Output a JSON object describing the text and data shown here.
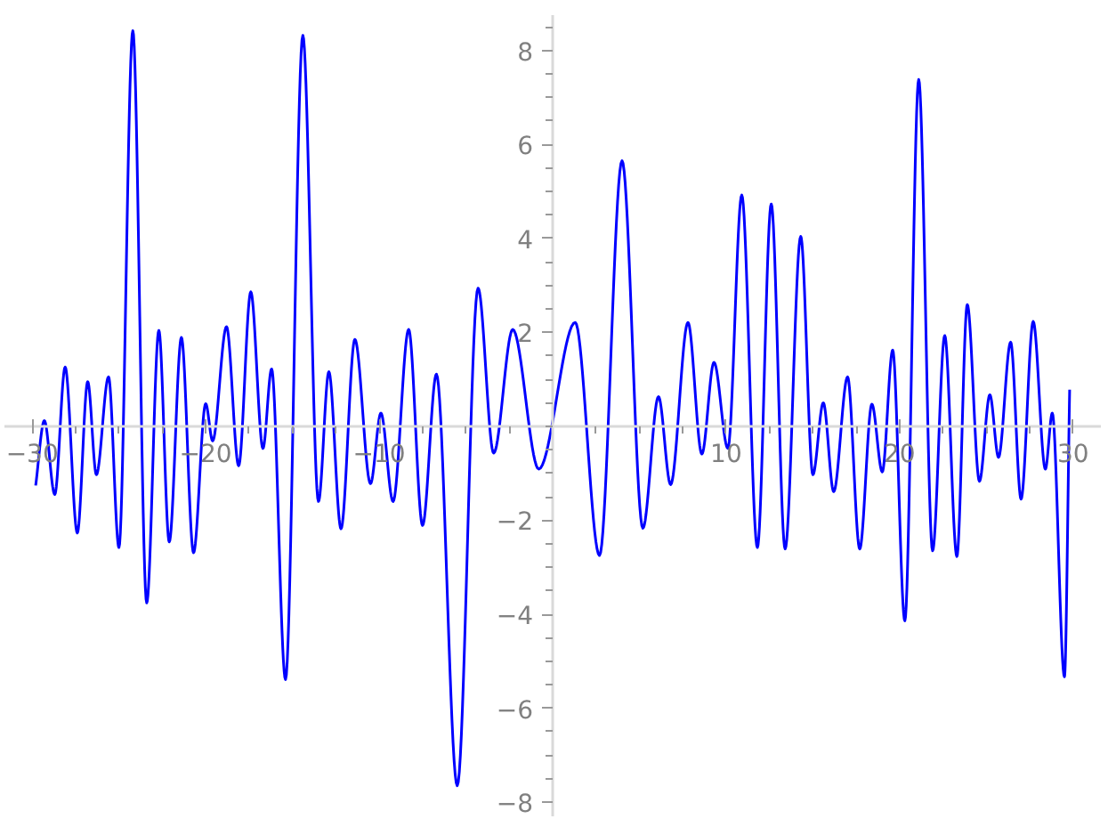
{
  "chart_data": {
    "type": "line",
    "x": [
      -29.8,
      -29.3,
      -28.7,
      -28.1,
      -27.4,
      -26.8,
      -26.3,
      -25.6,
      -25.0,
      -24.2,
      -23.4,
      -22.7,
      -22.1,
      -21.4,
      -20.7,
      -20.0,
      -19.6,
      -18.8,
      -18.1,
      -17.4,
      -16.7,
      -16.2,
      -15.4,
      -14.4,
      -13.5,
      -12.9,
      -12.2,
      -11.4,
      -10.5,
      -9.9,
      -9.2,
      -8.3,
      -7.5,
      -6.7,
      -5.5,
      -4.3,
      -3.4,
      -2.3,
      -0.8,
      1.3,
      2.7,
      4.0,
      5.2,
      6.1,
      6.8,
      7.8,
      8.6,
      9.3,
      10.1,
      10.9,
      11.8,
      12.6,
      13.4,
      14.3,
      15.0,
      15.6,
      16.2,
      17.0,
      17.7,
      18.4,
      19.0,
      19.6,
      20.3,
      21.1,
      21.9,
      22.6,
      23.3,
      23.9,
      24.6,
      25.2,
      25.7,
      26.4,
      27.0,
      27.7,
      28.4,
      28.8,
      29.5,
      29.8
    ],
    "series": [
      {
        "color": "#0000ff",
        "values": [
          -1.26,
          0.12,
          -1.45,
          1.26,
          -2.27,
          0.95,
          -1.03,
          1.05,
          -2.58,
          8.42,
          -3.76,
          2.04,
          -2.46,
          1.89,
          -2.69,
          0.48,
          -0.31,
          2.12,
          -0.84,
          2.86,
          -0.47,
          1.22,
          -5.39,
          8.32,
          -1.6,
          1.16,
          -2.18,
          1.85,
          -1.22,
          0.28,
          -1.6,
          2.06,
          -2.11,
          1.11,
          -7.65,
          2.94,
          -0.57,
          2.06,
          -0.91,
          2.21,
          -2.75,
          5.65,
          -2.17,
          0.63,
          -1.24,
          2.21,
          -0.59,
          1.36,
          -0.47,
          4.92,
          -2.58,
          4.73,
          -2.61,
          4.04,
          -1.03,
          0.5,
          -1.39,
          1.05,
          -2.61,
          0.47,
          -0.97,
          1.62,
          -4.14,
          7.38,
          -2.65,
          1.93,
          -2.77,
          2.59,
          -1.17,
          0.67,
          -0.66,
          1.79,
          -1.55,
          2.23,
          -0.91,
          0.28,
          -5.33,
          0.78
        ]
      }
    ],
    "xlim": [
      -31.6,
      31.6
    ],
    "ylim": [
      -8.3,
      8.75
    ],
    "xticks": [
      -30,
      -20,
      -10,
      10,
      20,
      30
    ],
    "yticks": [
      -8,
      -6,
      -4,
      -2,
      2,
      4,
      6,
      8
    ],
    "grid": false,
    "marker": "none",
    "line_style": "solid"
  }
}
